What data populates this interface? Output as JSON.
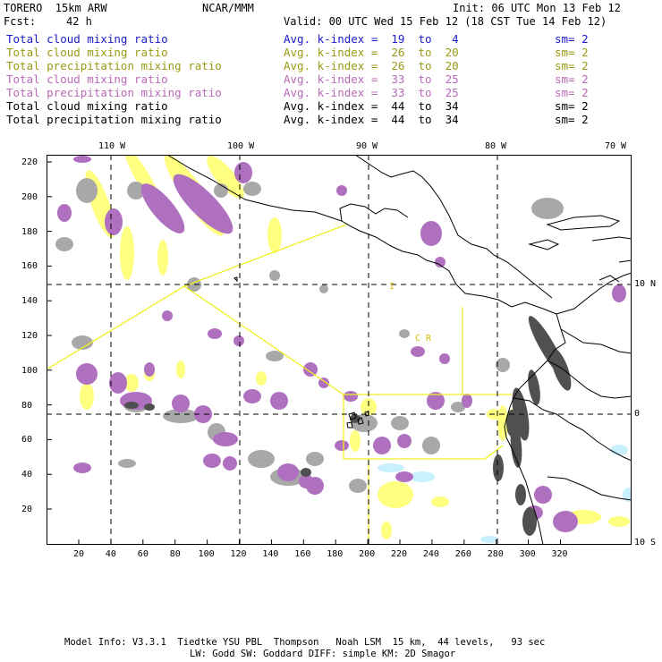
{
  "header": {
    "title_left": "TORERO  15km ARW",
    "title_center": "NCAR/MMM",
    "init": "Init: 06 UTC Mon 13 Feb 12",
    "fcst_label": "Fcst:",
    "fcst_value": "42 h",
    "valid": "Valid: 00 UTC Wed 15 Feb 12 (18 CST Tue 14 Feb 12)"
  },
  "legend": [
    {
      "field": "Total cloud mixing ratio",
      "index": "Avg. k-index =  19  to   4",
      "sm": "sm= 2",
      "color": "#1a1acc"
    },
    {
      "field": "Total cloud mixing ratio",
      "index": "Avg. k-index =  26  to  20",
      "sm": "sm= 2",
      "color": "#9a9a14"
    },
    {
      "field": "Total precipitation mixing ratio",
      "index": "Avg. k-index =  26  to  20",
      "sm": "sm= 2",
      "color": "#9a9a14"
    },
    {
      "field": "Total cloud mixing ratio",
      "index": "Avg. k-index =  33  to  25",
      "sm": "sm= 2",
      "color": "#b86ab8"
    },
    {
      "field": "Total precipitation mixing ratio",
      "index": "Avg. k-index =  33  to  25",
      "sm": "sm= 2",
      "color": "#b86ab8"
    },
    {
      "field": "Total cloud mixing ratio",
      "index": "Avg. k-index =  44  to  34",
      "sm": "sm= 2",
      "color": "#000000"
    },
    {
      "field": "Total precipitation mixing ratio",
      "index": "Avg. k-index =  44  to  34",
      "sm": "sm= 2",
      "color": "#000000"
    }
  ],
  "axes": {
    "top_lon": [
      "110 W",
      "100 W",
      "90 W",
      "80 W",
      "70 W"
    ],
    "left_y": [
      "220",
      "200",
      "180",
      "160",
      "140",
      "120",
      "100",
      "80",
      "60",
      "40",
      "20"
    ],
    "bottom_x": [
      "20",
      "40",
      "60",
      "80",
      "100",
      "120",
      "140",
      "160",
      "180",
      "200",
      "220",
      "240",
      "260",
      "280",
      "300",
      "320"
    ],
    "right_lat": [
      "10 N",
      "0",
      "10 S"
    ]
  },
  "region_labels": {
    "label_i": "I",
    "label_cr": "C R"
  },
  "footer": {
    "line1": "Model Info: V3.3.1  Tiedtke YSU PBL  Thompson   Noah LSM  15 km,  44 levels,   93 sec",
    "line2": "LW: Godd SW: Goddard DIFF: simple KM: 2D Smagor"
  },
  "colors": {
    "yellow": "#ffff80",
    "magenta": "#b070c0",
    "gray": "#a8a8a8",
    "dark": "#505050",
    "cyan": "#c8f0ff",
    "line": "#f0f020",
    "coast": "#000000"
  }
}
